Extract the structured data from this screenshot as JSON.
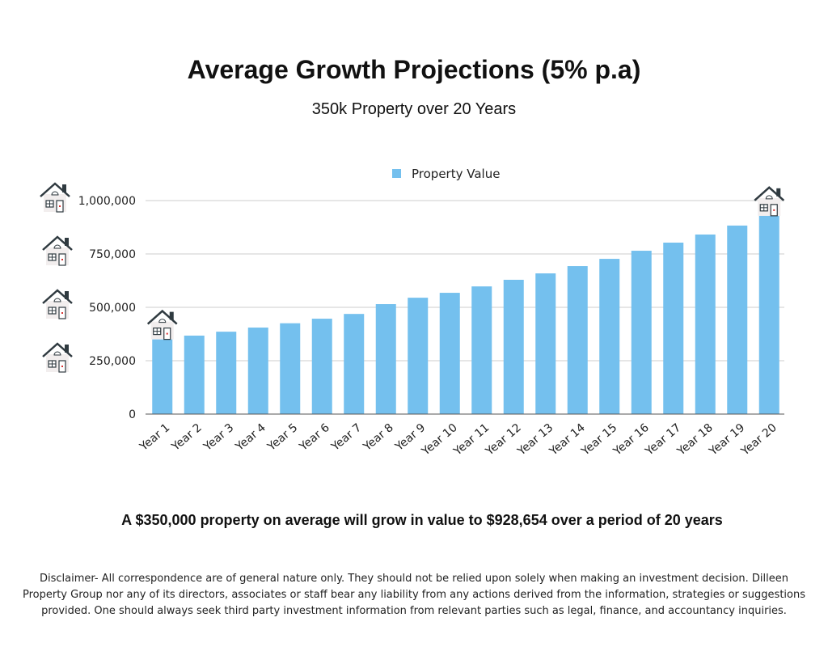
{
  "title": "Average Growth Projections (5% p.a)",
  "subtitle": "350k Property over 20 Years",
  "summary": "A $350,000 property on average will grow in value to $928,654 over a period of 20 years",
  "disclaimer": "Disclaimer- All correspondence are of general nature only. They should not be relied upon solely when making an investment decision. Dilleen Property Group nor any of its directors, associates or staff bear any liability from any actions derived from the information, strategies or suggestions provided. One should always seek third party investment information from relevant parties such as legal, finance, and accountancy inquiries.",
  "colors": {
    "bar": "#74c0ee",
    "grid": "#cccccc",
    "axis": "#555555"
  },
  "icons": [
    "house-icon"
  ],
  "chart_data": {
    "type": "bar",
    "title": "Average Growth Projections (5% p.a)",
    "subtitle": "350k Property over 20 Years",
    "xlabel": "",
    "ylabel": "",
    "legend": [
      "Property Value"
    ],
    "legend_position": "top-center",
    "grid": true,
    "ylim": [
      0,
      1000000
    ],
    "yticks": [
      0,
      250000,
      500000,
      750000,
      1000000
    ],
    "ytick_labels": [
      "0",
      "250,000",
      "500,000",
      "750,000",
      "1,000,000"
    ],
    "categories": [
      "Year 1",
      "Year 2",
      "Year 3",
      "Year 4",
      "Year 5",
      "Year 6",
      "Year 7",
      "Year 8",
      "Year 9",
      "Year 10",
      "Year 11",
      "Year 12",
      "Year 13",
      "Year 14",
      "Year 15",
      "Year 16",
      "Year 17",
      "Year 18",
      "Year 19",
      "Year 20"
    ],
    "series": [
      {
        "name": "Property Value",
        "values": [
          350000,
          367500,
          385875,
          405169,
          425427,
          446699,
          469033,
          515000,
          545000,
          568000,
          598000,
          629000,
          659000,
          693000,
          727000,
          765000,
          803000,
          841000,
          883000,
          928654
        ]
      }
    ]
  }
}
